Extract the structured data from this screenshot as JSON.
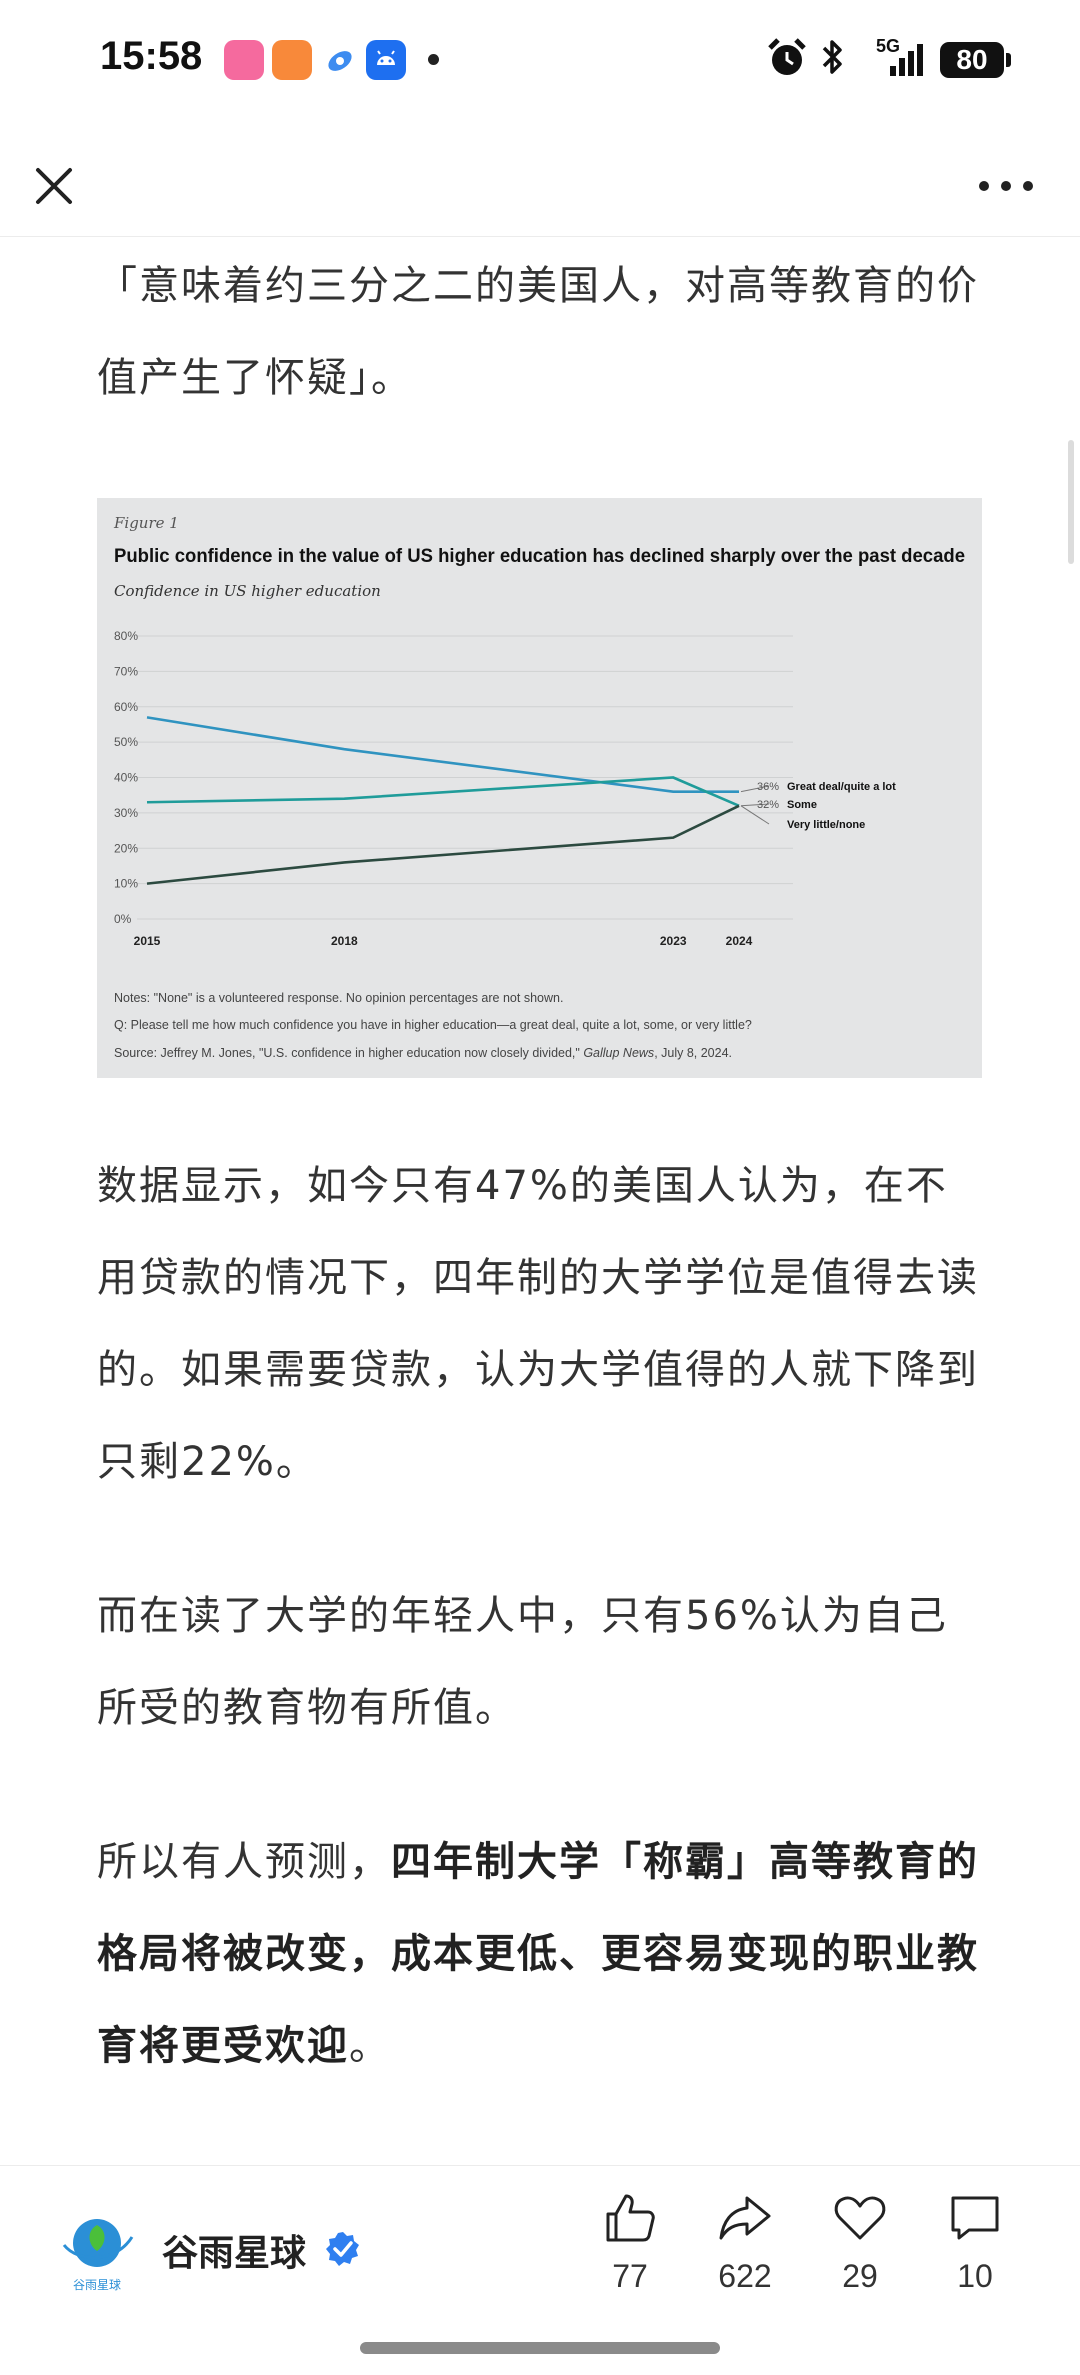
{
  "status_bar": {
    "time": "15:58",
    "battery": "80",
    "network": "5G"
  },
  "article": {
    "paragraphs": [
      {
        "text": "「意味着约三分之二的美国人，对高等教育的价值产生了怀疑」。"
      },
      {
        "text": "数据显示，如今只有47%的美国人认为，在不用贷款的情况下，四年制的大学学位是值得去读的。如果需要贷款，认为大学值得的人就下降到只剩22%。"
      },
      {
        "text": "而在读了大学的年轻人中，只有56%认为自己所受的教育物有所值。"
      },
      {
        "prefix": "所以有人预测，",
        "bold": "四年制大学「称霸」高等教育的格局将被改变，成本更低、更容易变现的职业教育将更受欢迎",
        "suffix": "。"
      }
    ]
  },
  "figure": {
    "label": "Figure 1",
    "notes": [
      "Notes: \"None\" is a volunteered response. No opinion percentages are not shown.",
      "Q: Please tell me how much confidence you have in higher education—a great deal, quite a lot, some, or very little?"
    ],
    "source_prefix": "Source: Jeffrey M. Jones, \"U.S. confidence in higher education now closely divided,\" ",
    "source_pub": "Gallup News",
    "source_suffix": ", July 8, 2024."
  },
  "chart_data": {
    "type": "line",
    "title": "Public confidence in the value of US higher education has declined sharply over the past decade",
    "subtitle": "Confidence in US higher education",
    "x": [
      2015,
      2018,
      2023,
      2024
    ],
    "x_tick_labels": [
      "2015",
      "2018",
      "2023",
      "2024"
    ],
    "y_ticks": [
      "0%",
      "10%",
      "20%",
      "30%",
      "40%",
      "50%",
      "60%",
      "70%",
      "80%"
    ],
    "ylim": [
      0,
      80
    ],
    "grid": true,
    "legend": "inline-right",
    "series": [
      {
        "name": "Great deal/quite a lot",
        "values": [
          57,
          48,
          36,
          36
        ],
        "end_label": "36%",
        "color": "#2f93c0"
      },
      {
        "name": "Some",
        "values": [
          33,
          34,
          40,
          32
        ],
        "end_label": "32%",
        "color": "#1f9c9a"
      },
      {
        "name": "Very little/none",
        "values": [
          10,
          16,
          23,
          32
        ],
        "end_label": "",
        "color": "#2c4a40"
      }
    ]
  },
  "footer": {
    "avatar_text": "谷雨星球",
    "author": "谷雨星球",
    "actions": [
      {
        "name": "like",
        "count": "77"
      },
      {
        "name": "share",
        "count": "622"
      },
      {
        "name": "favorite",
        "count": "29"
      },
      {
        "name": "comment",
        "count": "10"
      }
    ]
  }
}
